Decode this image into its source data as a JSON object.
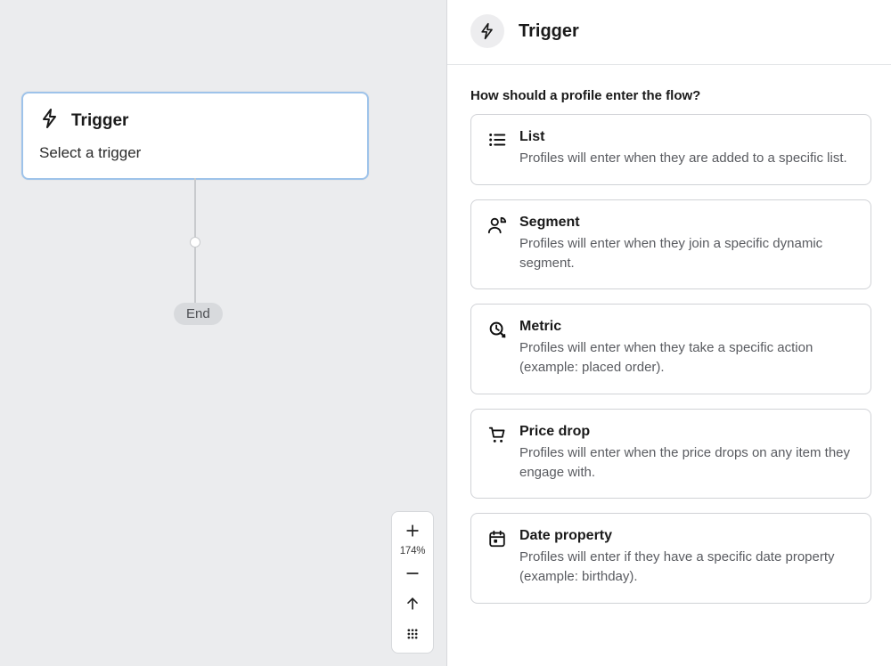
{
  "canvas": {
    "background_color": "#ebecee",
    "trigger_card": {
      "title": "Trigger",
      "subtitle": "Select a trigger",
      "border_color": "#9ec3ea"
    },
    "end_label": "End",
    "zoom": {
      "percent_label": "174%"
    }
  },
  "panel": {
    "title": "Trigger",
    "prompt": "How should a profile enter the flow?",
    "options": [
      {
        "icon": "list",
        "title": "List",
        "desc": "Profiles will enter when they are added to a specific list."
      },
      {
        "icon": "segment",
        "title": "Segment",
        "desc": "Profiles will enter when they join a specific dynamic segment."
      },
      {
        "icon": "metric",
        "title": "Metric",
        "desc": "Profiles will enter when they take a specific action (example: placed order)."
      },
      {
        "icon": "price-drop",
        "title": "Price drop",
        "desc": "Profiles will enter when the price drops on any item they engage with."
      },
      {
        "icon": "date",
        "title": "Date property",
        "desc": "Profiles will enter if they have a specific date property (example: birthday)."
      }
    ]
  }
}
